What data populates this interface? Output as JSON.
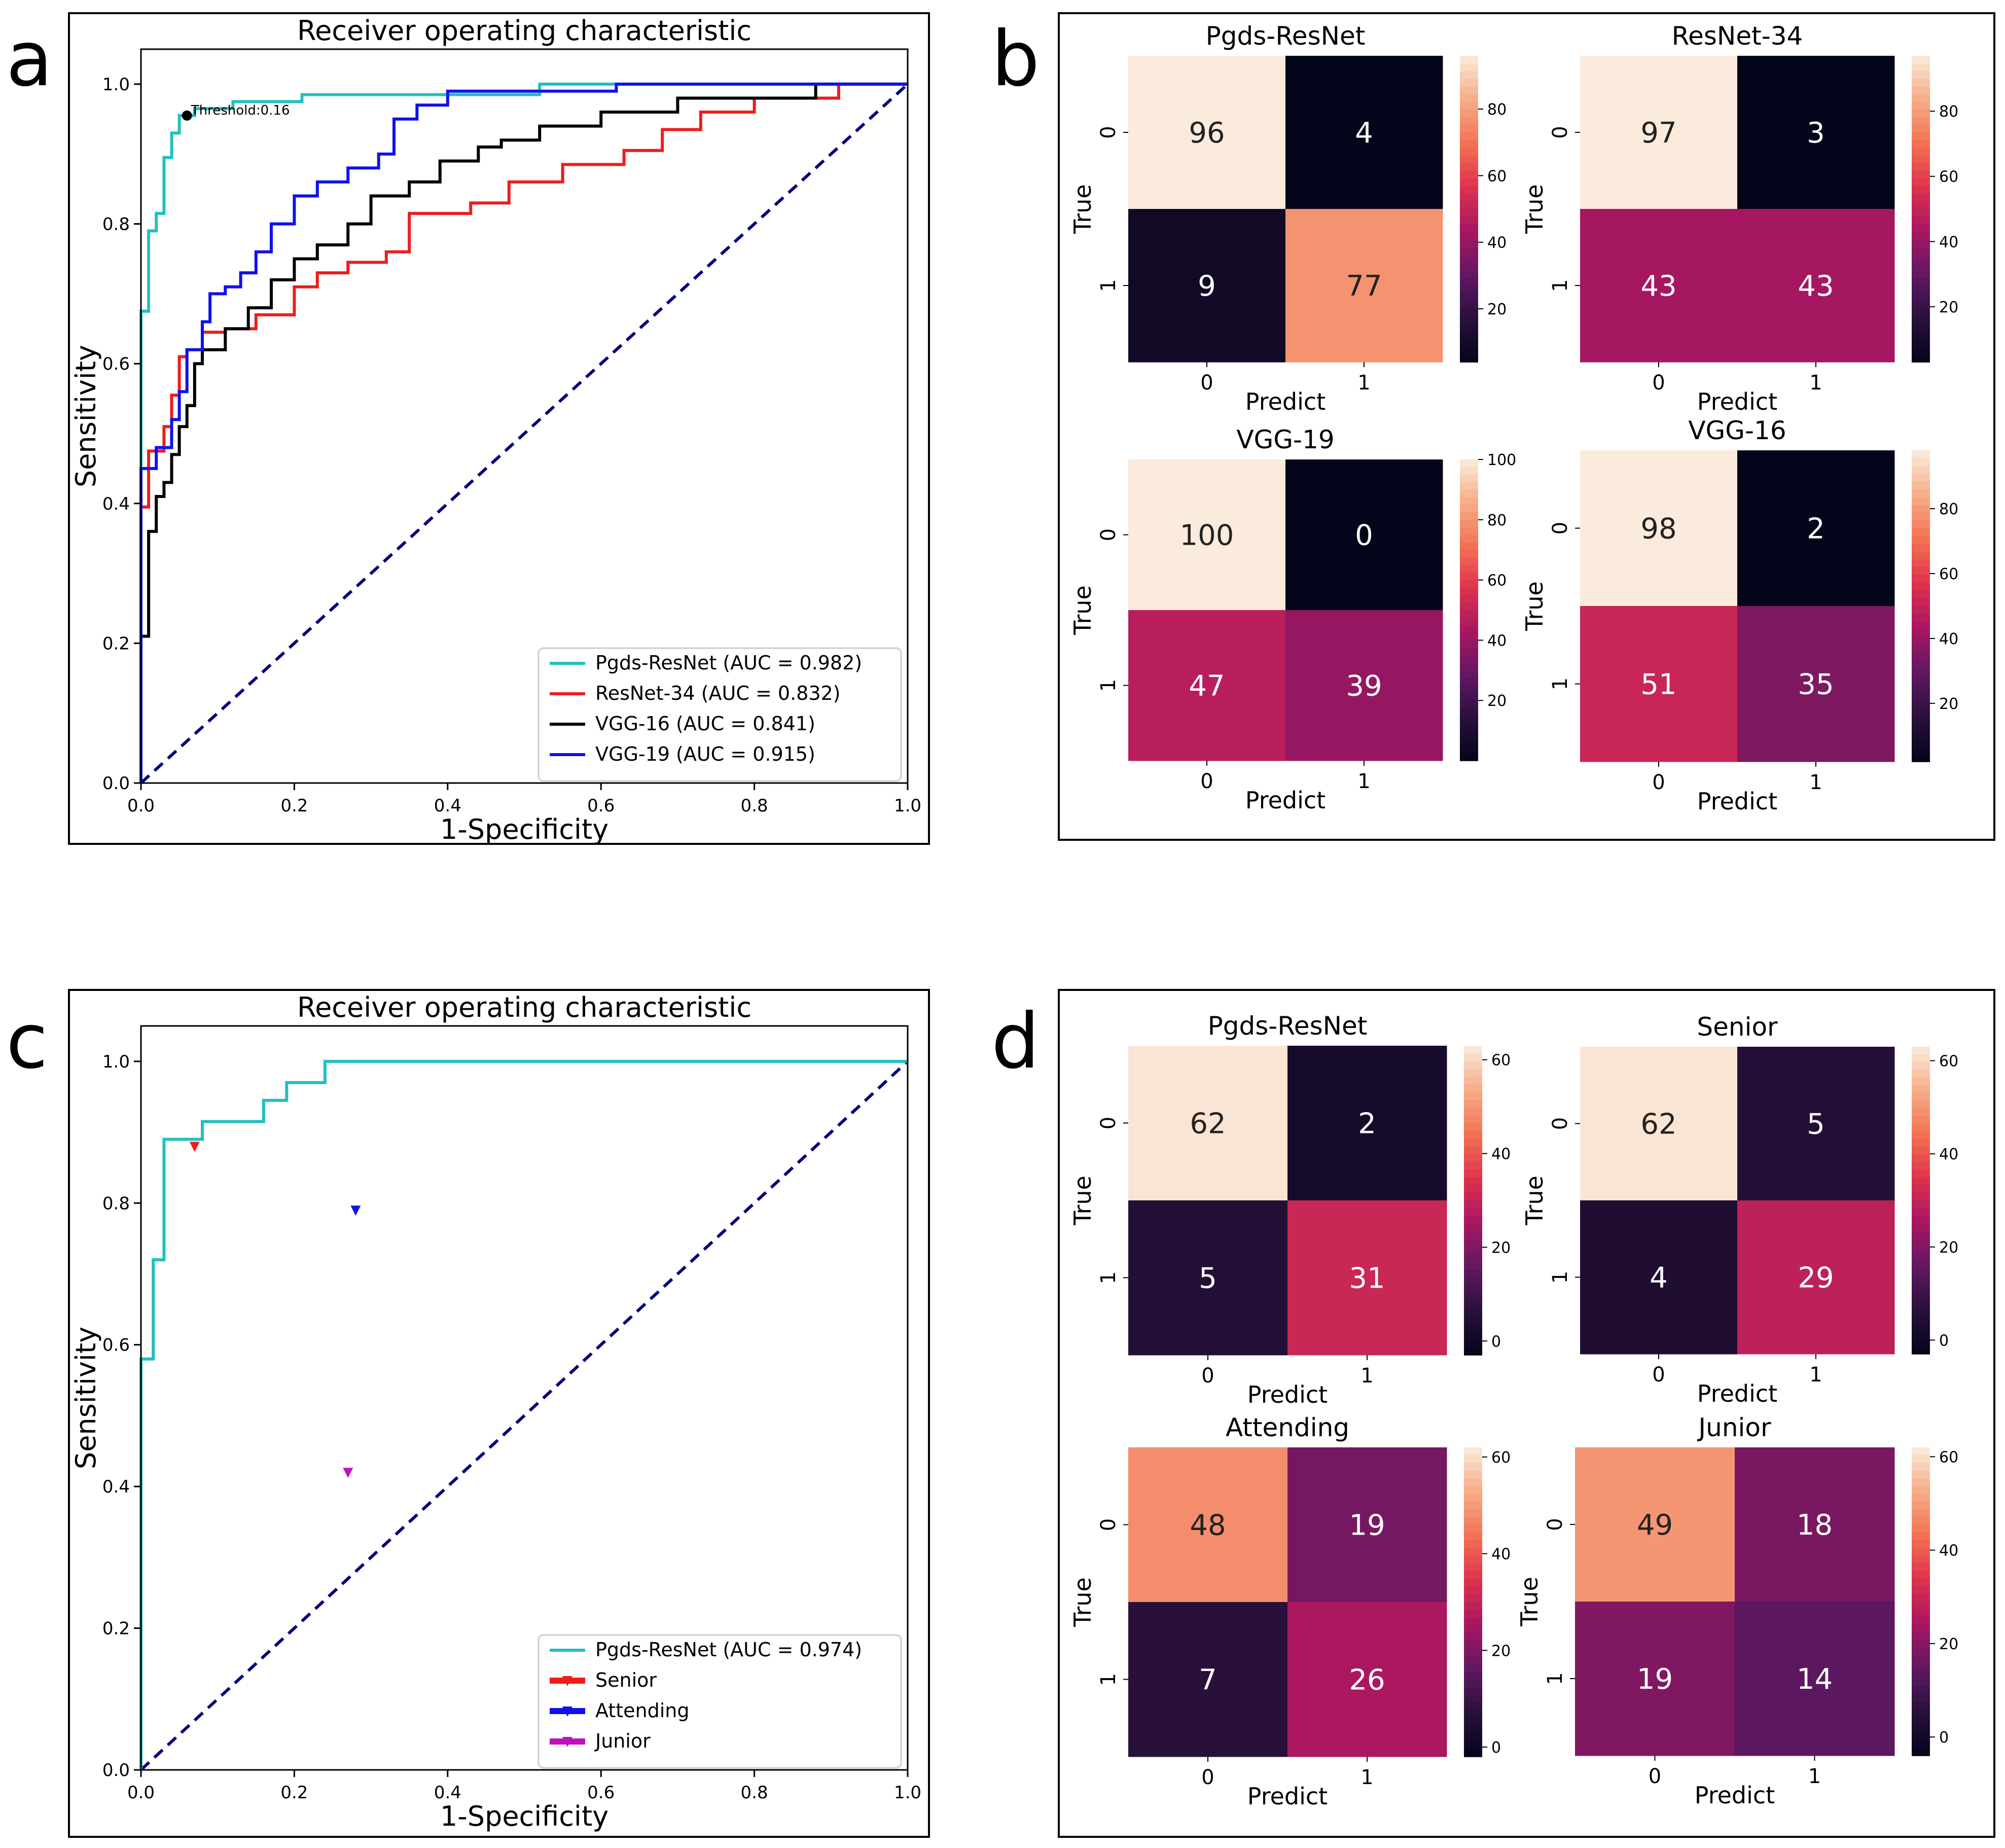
{
  "panel_labels": [
    "a",
    "b",
    "c",
    "d"
  ],
  "chart_data": [
    {
      "panel": "a",
      "type": "line",
      "title": "Receiver operating characteristic",
      "xlabel": "1-Specificity",
      "ylabel": "Sensitivity",
      "xlim": [
        0,
        1
      ],
      "ylim": [
        0,
        1.05
      ],
      "xticks": [
        "0.0",
        "0.2",
        "0.4",
        "0.6",
        "0.8",
        "1.0"
      ],
      "yticks": [
        "0.0",
        "0.2",
        "0.4",
        "0.6",
        "0.8",
        "1.0"
      ],
      "legend_position": "lower-right",
      "annotation": {
        "text": "Threshold:0.16",
        "x": 0.06,
        "y": 0.955
      },
      "series": [
        {
          "name": "Pgds-ResNet (AUC = 0.982)",
          "color": "#22bfbf",
          "x": [
            0,
            0,
            0.01,
            0.01,
            0.02,
            0.02,
            0.03,
            0.03,
            0.04,
            0.04,
            0.05,
            0.05,
            0.07,
            0.07,
            0.12,
            0.12,
            0.21,
            0.21,
            0.52,
            0.52,
            1.0
          ],
          "y": [
            0,
            0.675,
            0.675,
            0.79,
            0.79,
            0.815,
            0.815,
            0.895,
            0.895,
            0.93,
            0.93,
            0.955,
            0.955,
            0.965,
            0.965,
            0.975,
            0.975,
            0.985,
            0.985,
            1.0,
            1.0
          ]
        },
        {
          "name": "ResNet-34 (AUC = 0.832)",
          "color": "#ee1c1c",
          "x": [
            0,
            0,
            0.01,
            0.01,
            0.03,
            0.03,
            0.04,
            0.04,
            0.05,
            0.05,
            0.06,
            0.06,
            0.08,
            0.08,
            0.11,
            0.11,
            0.15,
            0.15,
            0.2,
            0.2,
            0.23,
            0.23,
            0.27,
            0.27,
            0.32,
            0.32,
            0.35,
            0.35,
            0.43,
            0.43,
            0.48,
            0.48,
            0.55,
            0.55,
            0.63,
            0.63,
            0.68,
            0.68,
            0.73,
            0.73,
            0.8,
            0.8,
            0.91,
            0.91,
            1.0
          ],
          "y": [
            0,
            0.395,
            0.395,
            0.475,
            0.475,
            0.51,
            0.51,
            0.555,
            0.555,
            0.61,
            0.61,
            0.62,
            0.62,
            0.645,
            0.645,
            0.65,
            0.65,
            0.67,
            0.67,
            0.71,
            0.71,
            0.73,
            0.73,
            0.745,
            0.745,
            0.76,
            0.76,
            0.815,
            0.815,
            0.83,
            0.83,
            0.86,
            0.86,
            0.885,
            0.885,
            0.905,
            0.905,
            0.935,
            0.935,
            0.96,
            0.96,
            0.98,
            0.98,
            1.0,
            1.0
          ]
        },
        {
          "name": "VGG-16 (AUC = 0.841)",
          "color": "#000000",
          "x": [
            0,
            0,
            0.01,
            0.01,
            0.02,
            0.02,
            0.03,
            0.03,
            0.04,
            0.04,
            0.05,
            0.05,
            0.06,
            0.06,
            0.07,
            0.07,
            0.08,
            0.08,
            0.11,
            0.11,
            0.14,
            0.14,
            0.17,
            0.17,
            0.2,
            0.2,
            0.23,
            0.23,
            0.27,
            0.27,
            0.3,
            0.3,
            0.35,
            0.35,
            0.39,
            0.39,
            0.44,
            0.44,
            0.47,
            0.47,
            0.52,
            0.52,
            0.6,
            0.6,
            0.7,
            0.7,
            0.88,
            0.88,
            1.0
          ],
          "y": [
            0,
            0.21,
            0.21,
            0.36,
            0.36,
            0.41,
            0.41,
            0.43,
            0.43,
            0.47,
            0.47,
            0.51,
            0.51,
            0.54,
            0.54,
            0.6,
            0.6,
            0.62,
            0.62,
            0.65,
            0.65,
            0.68,
            0.68,
            0.72,
            0.72,
            0.75,
            0.75,
            0.77,
            0.77,
            0.8,
            0.8,
            0.84,
            0.84,
            0.86,
            0.86,
            0.89,
            0.89,
            0.91,
            0.91,
            0.92,
            0.92,
            0.94,
            0.94,
            0.96,
            0.96,
            0.98,
            0.98,
            1.0,
            1.0
          ]
        },
        {
          "name": "VGG-19 (AUC = 0.915)",
          "color": "#1010ee",
          "x": [
            0,
            0,
            0.02,
            0.02,
            0.04,
            0.04,
            0.05,
            0.05,
            0.06,
            0.06,
            0.08,
            0.08,
            0.09,
            0.09,
            0.11,
            0.11,
            0.13,
            0.13,
            0.15,
            0.15,
            0.17,
            0.17,
            0.2,
            0.2,
            0.23,
            0.23,
            0.27,
            0.27,
            0.31,
            0.31,
            0.33,
            0.33,
            0.36,
            0.36,
            0.4,
            0.4,
            0.62,
            0.62,
            1.0
          ],
          "y": [
            0,
            0.45,
            0.45,
            0.48,
            0.48,
            0.52,
            0.52,
            0.56,
            0.56,
            0.62,
            0.62,
            0.66,
            0.66,
            0.7,
            0.7,
            0.71,
            0.71,
            0.73,
            0.73,
            0.76,
            0.76,
            0.8,
            0.8,
            0.84,
            0.84,
            0.86,
            0.86,
            0.88,
            0.88,
            0.9,
            0.9,
            0.95,
            0.95,
            0.97,
            0.97,
            0.99,
            0.99,
            1.0,
            1.0
          ]
        }
      ]
    },
    {
      "panel": "c",
      "type": "line",
      "title": "Receiver operating characteristic",
      "xlabel": "1-Specificity",
      "ylabel": "Sensitivity",
      "xlim": [
        0,
        1
      ],
      "ylim": [
        0,
        1.05
      ],
      "xticks": [
        "0.0",
        "0.2",
        "0.4",
        "0.6",
        "0.8",
        "1.0"
      ],
      "yticks": [
        "0.0",
        "0.2",
        "0.4",
        "0.6",
        "0.8",
        "1.0"
      ],
      "legend_position": "lower-right",
      "series": [
        {
          "name": "Pgds-ResNet (AUC = 0.974)",
          "color": "#22bfbf",
          "x": [
            0,
            0,
            0.016,
            0.016,
            0.03,
            0.03,
            0.08,
            0.08,
            0.16,
            0.16,
            0.19,
            0.19,
            0.24,
            0.24,
            1.0
          ],
          "y": [
            0,
            0.58,
            0.58,
            0.72,
            0.72,
            0.89,
            0.89,
            0.915,
            0.915,
            0.945,
            0.945,
            0.97,
            0.97,
            1.0,
            1.0
          ]
        }
      ],
      "markers": [
        {
          "name": "Senior",
          "color": "#ee1c1c",
          "x": 0.07,
          "y": 0.88
        },
        {
          "name": "Attending",
          "color": "#1010ee",
          "x": 0.28,
          "y": 0.79
        },
        {
          "name": "Junior",
          "color": "#c010c0",
          "x": 0.27,
          "y": 0.42
        }
      ]
    },
    {
      "panel": "b",
      "type": "heatmap",
      "matrices": [
        {
          "title": "Pgds-ResNet",
          "values": [
            [
              96,
              4
            ],
            [
              9,
              77
            ]
          ],
          "vmin": 4,
          "vmax": 96,
          "colorbar_ticks": [
            20,
            40,
            60,
            80
          ]
        },
        {
          "title": "ResNet-34",
          "values": [
            [
              97,
              3
            ],
            [
              43,
              43
            ]
          ],
          "vmin": 3,
          "vmax": 97,
          "colorbar_ticks": [
            20,
            40,
            60,
            80
          ]
        },
        {
          "title": "VGG-19",
          "values": [
            [
              100,
              0
            ],
            [
              47,
              39
            ]
          ],
          "vmin": 0,
          "vmax": 100,
          "colorbar_ticks": [
            20,
            40,
            60,
            80,
            100
          ]
        },
        {
          "title": "VGG-16",
          "values": [
            [
              98,
              2
            ],
            [
              51,
              35
            ]
          ],
          "vmin": 2,
          "vmax": 98,
          "colorbar_ticks": [
            20,
            40,
            60,
            80
          ]
        }
      ],
      "xlabel": "Predict",
      "ylabel": "True",
      "tick_labels": [
        "0",
        "1"
      ]
    },
    {
      "panel": "d",
      "type": "heatmap",
      "matrices": [
        {
          "title": "Pgds-ResNet",
          "values": [
            [
              62,
              2
            ],
            [
              5,
              31
            ]
          ],
          "vmin": -3,
          "vmax": 63,
          "colorbar_ticks": [
            0,
            20,
            40,
            60
          ]
        },
        {
          "title": "Senior",
          "values": [
            [
              62,
              5
            ],
            [
              4,
              29
            ]
          ],
          "vmin": -3,
          "vmax": 63,
          "colorbar_ticks": [
            0,
            20,
            40,
            60
          ]
        },
        {
          "title": "Attending",
          "values": [
            [
              48,
              19
            ],
            [
              7,
              26
            ]
          ],
          "vmin": -2,
          "vmax": 62,
          "colorbar_ticks": [
            0,
            20,
            40,
            60
          ]
        },
        {
          "title": "Junior",
          "values": [
            [
              49,
              18
            ],
            [
              19,
              14
            ]
          ],
          "vmin": -4,
          "vmax": 62,
          "colorbar_ticks": [
            0,
            20,
            40,
            60
          ]
        }
      ],
      "xlabel": "Predict",
      "ylabel": "True",
      "tick_labels": [
        "0",
        "1"
      ]
    }
  ]
}
